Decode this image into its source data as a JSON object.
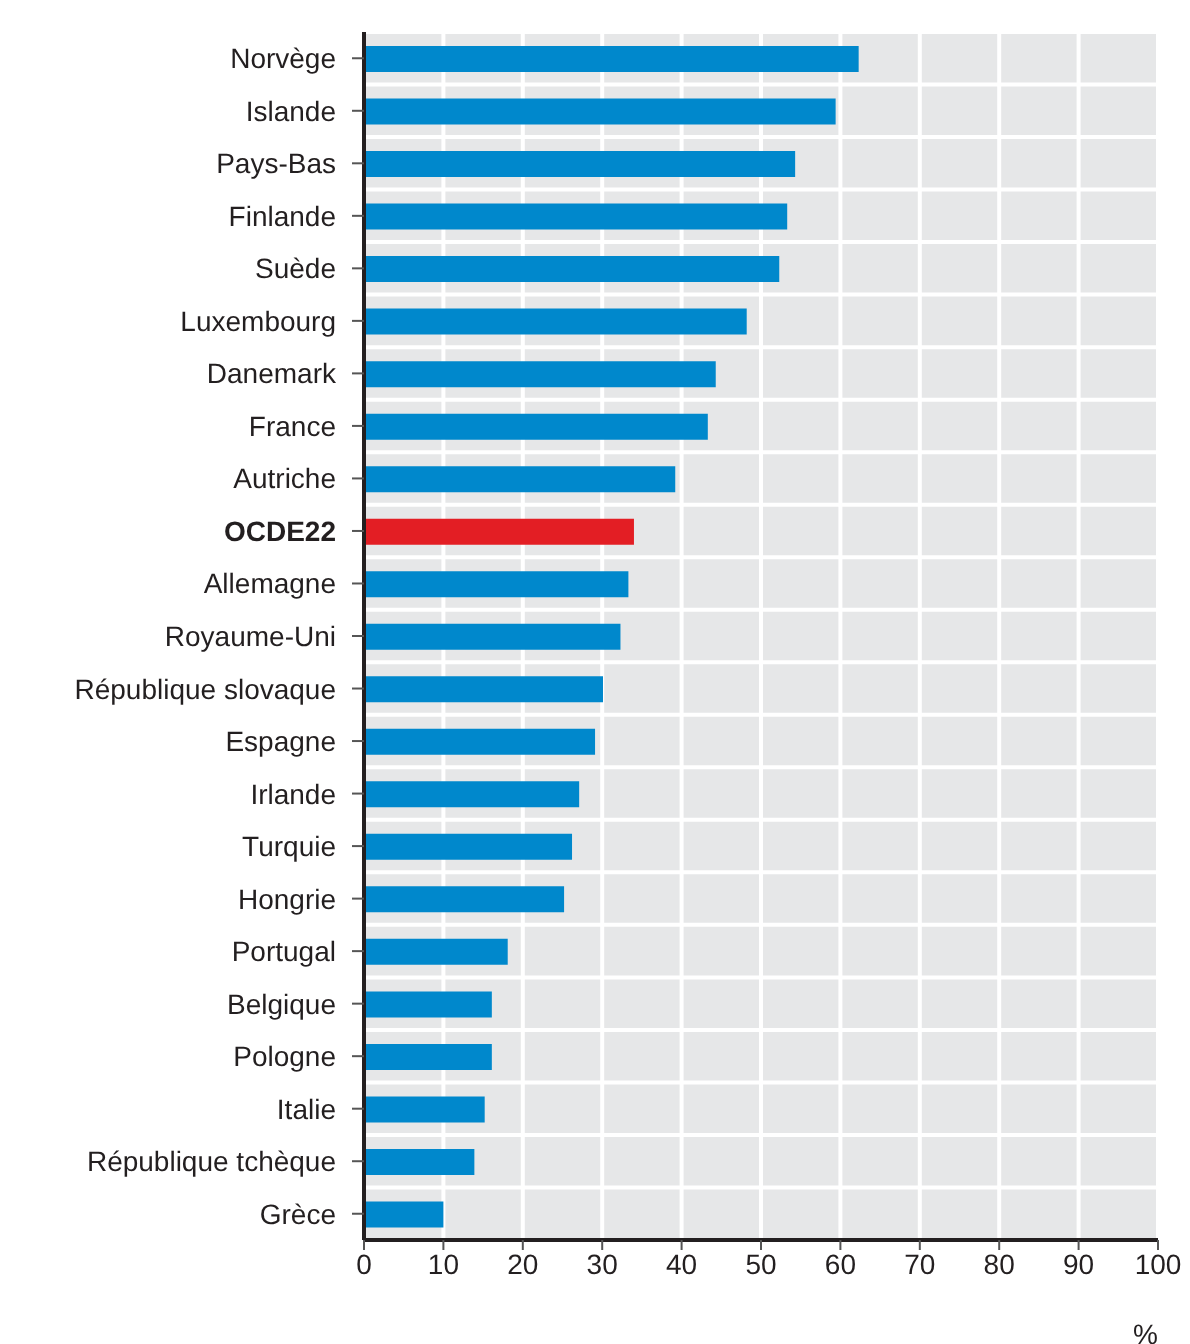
{
  "chart_data": {
    "type": "bar",
    "orientation": "horizontal",
    "xlabel": "%",
    "categories": [
      "Norvège",
      "Islande",
      "Pays-Bas",
      "Finlande",
      "Suède",
      "Luxembourg",
      "Danemark",
      "France",
      "Autriche",
      "OCDE22",
      "Allemagne",
      "Royaume-Uni",
      "République slovaque",
      "Espagne",
      "Irlande",
      "Turquie",
      "Hongrie",
      "Portugal",
      "Belgique",
      "Pologne",
      "Italie",
      "République tchèque",
      "Grèce"
    ],
    "values": [
      62.3,
      59.4,
      54.3,
      53.3,
      52.3,
      48.2,
      44.3,
      43.3,
      39.2,
      34,
      33.3,
      32.3,
      30.1,
      29.1,
      27.1,
      26.2,
      25.2,
      18.1,
      16.1,
      16.1,
      15.2,
      13.9,
      10
    ],
    "colors": [
      "#0088cc",
      "#0088cc",
      "#0088cc",
      "#0088cc",
      "#0088cc",
      "#0088cc",
      "#0088cc",
      "#0088cc",
      "#0088cc",
      "#e31e24",
      "#0088cc",
      "#0088cc",
      "#0088cc",
      "#0088cc",
      "#0088cc",
      "#0088cc",
      "#0088cc",
      "#0088cc",
      "#0088cc",
      "#0088cc",
      "#0088cc",
      "#0088cc",
      "#0088cc"
    ],
    "xlim": [
      0,
      100
    ],
    "xticks": [
      0,
      10,
      20,
      30,
      40,
      50,
      60,
      70,
      80,
      90,
      100
    ],
    "grid": true,
    "legend": false
  }
}
